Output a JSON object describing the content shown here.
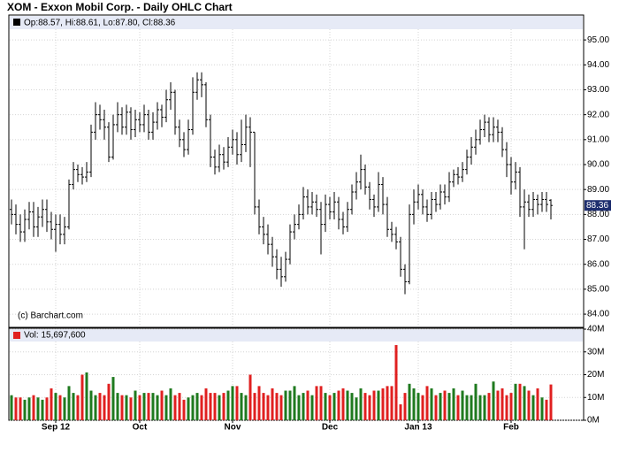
{
  "chart_data": {
    "type": "ohlc",
    "title": "XOM - Exxon Mobil Corp. - Daily OHLC Chart",
    "legend": "Op:88.57, Hi:88.61, Lo:87.80, Cl:88.36",
    "credit": "(c) Barchart.com",
    "volume_legend": "Vol: 15,697,600",
    "color": "#000000",
    "up_color": "#1f7a1f",
    "down_color": "#e02020",
    "grid": true,
    "open": [
      88.2,
      88.0,
      87.6,
      87.3,
      87.8,
      88.1,
      87.5,
      87.9,
      88.2,
      87.7,
      87.4,
      87.6,
      87.2,
      87.5,
      89.2,
      89.8,
      89.6,
      89.5,
      89.7,
      91.3,
      92.0,
      91.8,
      91.5,
      90.3,
      91.6,
      92.0,
      91.5,
      92.1,
      91.4,
      91.8,
      91.6,
      92.0,
      91.3,
      91.7,
      92.2,
      91.9,
      92.6,
      92.9,
      91.5,
      91.0,
      90.6,
      91.4,
      92.9,
      93.4,
      93.2,
      91.8,
      90.3,
      89.9,
      90.4,
      90.1,
      90.7,
      91.0,
      90.4,
      90.8,
      91.5,
      91.3,
      88.3,
      87.5,
      87.2,
      86.8,
      86.3,
      85.8,
      85.5,
      86.2,
      87.3,
      87.6,
      88.0,
      88.7,
      88.3,
      88.5,
      88.2,
      87.6,
      88.4,
      88.1,
      88.5,
      87.8,
      87.5,
      88.2,
      88.9,
      89.3,
      89.8,
      89.1,
      88.6,
      88.3,
      89.2,
      88.4,
      87.4,
      87.2,
      86.9,
      85.8,
      85.3,
      88.0,
      88.5,
      88.8,
      88.3,
      88.0,
      88.6,
      88.4,
      88.9,
      88.7,
      89.3,
      89.6,
      89.5,
      89.8,
      90.3,
      90.7,
      91.0,
      91.4,
      91.7,
      91.2,
      91.5,
      91.3,
      90.6,
      90.0,
      89.3,
      89.7,
      88.3,
      88.5,
      88.2,
      88.6,
      88.4,
      88.6,
      88.57
    ],
    "high": [
      88.6,
      88.4,
      88.0,
      88.2,
      88.5,
      88.5,
      88.3,
      88.6,
      88.6,
      88.1,
      88.0,
      88.0,
      87.9,
      89.4,
      90.1,
      90.0,
      89.9,
      90.1,
      91.6,
      92.5,
      92.4,
      92.2,
      91.7,
      92.0,
      92.5,
      92.3,
      92.4,
      92.3,
      92.2,
      92.1,
      92.4,
      92.2,
      92.1,
      92.5,
      92.4,
      93.0,
      93.3,
      93.0,
      91.8,
      91.3,
      91.8,
      93.5,
      93.7,
      93.7,
      93.3,
      92.0,
      90.6,
      90.8,
      90.7,
      91.1,
      91.4,
      91.3,
      91.8,
      92.0,
      91.9,
      91.3,
      88.6,
      87.9,
      87.6,
      87.1,
      86.6,
      86.3,
      86.5,
      87.6,
      88.0,
      88.4,
      89.1,
      89.0,
      88.9,
      88.8,
      88.5,
      88.8,
      88.7,
      88.9,
      88.7,
      88.1,
      88.5,
      89.2,
      89.7,
      90.4,
      90.0,
      89.3,
      88.8,
      89.7,
      89.5,
      88.7,
      87.7,
      87.5,
      87.1,
      86.0,
      88.4,
      89.0,
      89.2,
      89.0,
      88.6,
      88.9,
      88.9,
      89.2,
      89.2,
      89.7,
      89.8,
      89.9,
      90.1,
      90.6,
      91.1,
      91.4,
      91.8,
      92.0,
      91.9,
      91.9,
      91.8,
      91.5,
      90.9,
      90.3,
      90.1,
      89.9,
      89.0,
      88.8,
      88.9,
      88.8,
      88.9,
      88.9,
      88.61
    ],
    "low": [
      87.6,
      87.2,
      86.9,
      86.9,
      87.4,
      87.1,
      87.1,
      87.5,
      87.3,
      87.0,
      86.5,
      86.8,
      86.8,
      87.4,
      89.0,
      89.3,
      89.2,
      89.3,
      89.5,
      91.0,
      91.4,
      91.0,
      90.1,
      90.2,
      91.3,
      91.2,
      91.2,
      91.0,
      91.1,
      91.3,
      91.3,
      91.0,
      91.0,
      91.4,
      91.5,
      91.7,
      92.2,
      91.2,
      90.7,
      90.3,
      90.4,
      91.2,
      92.6,
      92.7,
      91.5,
      89.9,
      89.6,
      89.7,
      89.8,
      89.9,
      90.4,
      90.0,
      90.1,
      90.5,
      89.9,
      88.0,
      87.2,
      86.8,
      86.4,
      85.9,
      85.4,
      85.1,
      85.3,
      86.0,
      87.0,
      87.4,
      87.8,
      88.0,
      88.0,
      87.9,
      86.4,
      87.3,
      87.8,
      87.8,
      87.4,
      87.2,
      87.3,
      88.0,
      88.6,
      89.0,
      88.8,
      88.2,
      87.9,
      88.1,
      88.0,
      87.1,
      86.9,
      86.6,
      85.5,
      84.8,
      85.2,
      87.6,
      88.2,
      88.0,
      87.7,
      87.8,
      88.1,
      88.2,
      88.4,
      88.5,
      89.1,
      89.2,
      89.3,
      89.6,
      90.0,
      90.4,
      90.8,
      91.1,
      90.9,
      90.9,
      90.9,
      90.3,
      89.5,
      88.8,
      89.0,
      87.9,
      86.6,
      87.9,
      87.9,
      88.0,
      88.1,
      88.1,
      87.8
    ],
    "close": [
      88.0,
      87.6,
      87.3,
      87.8,
      88.1,
      87.5,
      87.9,
      88.2,
      87.7,
      87.4,
      87.6,
      87.2,
      87.5,
      89.2,
      89.8,
      89.6,
      89.5,
      89.7,
      91.3,
      92.0,
      91.8,
      91.5,
      90.3,
      91.6,
      92.0,
      91.5,
      92.1,
      91.4,
      91.8,
      91.6,
      92.0,
      91.3,
      91.7,
      92.2,
      91.9,
      92.6,
      92.9,
      91.5,
      91.0,
      90.6,
      91.4,
      92.9,
      93.4,
      93.2,
      91.8,
      90.3,
      89.9,
      90.4,
      90.1,
      90.7,
      91.0,
      90.4,
      90.8,
      91.5,
      91.3,
      88.3,
      87.5,
      87.2,
      86.8,
      86.3,
      85.8,
      85.5,
      86.2,
      87.3,
      87.6,
      88.0,
      88.7,
      88.3,
      88.5,
      88.2,
      87.6,
      88.4,
      88.1,
      88.5,
      87.8,
      87.5,
      88.2,
      88.9,
      89.3,
      89.8,
      89.1,
      88.6,
      88.3,
      89.2,
      88.4,
      87.4,
      87.2,
      86.9,
      85.8,
      85.3,
      88.0,
      88.5,
      88.8,
      88.3,
      88.0,
      88.6,
      88.4,
      88.9,
      88.7,
      89.3,
      89.6,
      89.5,
      89.8,
      90.3,
      90.7,
      91.0,
      91.4,
      91.7,
      91.2,
      91.5,
      91.3,
      90.6,
      90.0,
      89.3,
      89.7,
      88.3,
      88.5,
      88.2,
      88.6,
      88.4,
      88.6,
      88.4,
      88.36
    ],
    "volume": [
      11,
      10,
      10,
      9,
      10,
      11,
      10,
      9,
      10,
      14,
      12,
      11,
      10,
      15,
      12,
      11,
      20,
      21,
      13,
      11,
      12,
      11,
      16,
      19,
      12,
      11,
      11,
      10,
      13,
      11,
      12,
      12,
      12,
      11,
      13,
      11,
      14,
      11,
      12,
      9,
      10,
      11,
      12,
      11,
      14,
      12,
      12,
      11,
      12,
      13,
      15,
      15,
      12,
      11,
      20,
      12,
      15,
      12,
      11,
      14,
      12,
      11,
      13,
      13,
      15,
      11,
      12,
      13,
      11,
      15,
      15,
      12,
      11,
      12,
      13,
      14,
      13,
      12,
      10,
      14,
      12,
      11,
      13,
      13,
      14,
      15,
      15,
      33,
      7,
      12,
      16,
      14,
      12,
      11,
      15,
      14,
      11,
      12,
      13,
      12,
      14,
      11,
      13,
      11,
      11,
      16,
      11,
      11,
      12,
      17,
      13,
      14,
      11,
      12,
      16,
      16,
      15,
      13,
      11,
      14,
      10,
      9,
      15.6976
    ],
    "xticks": [
      {
        "value": 10,
        "label": "Sep 12"
      },
      {
        "value": 29,
        "label": "Oct"
      },
      {
        "value": 50,
        "label": "Nov"
      },
      {
        "value": 72,
        "label": "Dec"
      },
      {
        "value": 92,
        "label": "Jan 13"
      },
      {
        "value": 113,
        "label": "Feb"
      }
    ],
    "ylim": [
      83.47,
      95.43
    ],
    "yticks": [
      {
        "value": 84,
        "label": "84.00"
      },
      {
        "value": 85,
        "label": "85.00"
      },
      {
        "value": 86,
        "label": "86.00"
      },
      {
        "value": 87,
        "label": "87.00"
      },
      {
        "value": 88,
        "label": "88.00"
      },
      {
        "value": 89,
        "label": "89.00"
      },
      {
        "value": 90,
        "label": "90.00"
      },
      {
        "value": 91,
        "label": "91.00"
      },
      {
        "value": 92,
        "label": "92.00"
      },
      {
        "value": 93,
        "label": "93.00"
      },
      {
        "value": 94,
        "label": "94.00"
      },
      {
        "value": 95,
        "label": "95.00"
      }
    ],
    "vol_ylim": [
      0,
      40
    ],
    "vol_yticks": [
      {
        "value": 0,
        "label": "0M"
      },
      {
        "value": 10,
        "label": "10M"
      },
      {
        "value": 20,
        "label": "20M"
      },
      {
        "value": 30,
        "label": "30M"
      },
      {
        "value": 40,
        "label": "40M"
      }
    ]
  }
}
